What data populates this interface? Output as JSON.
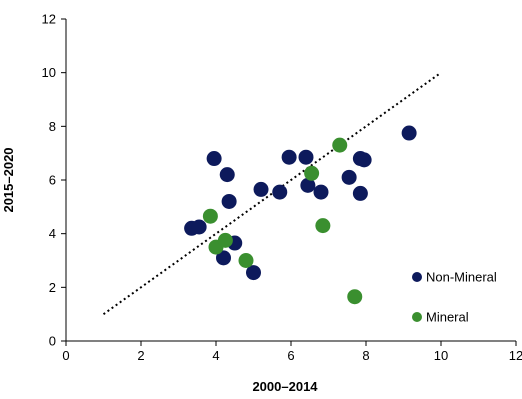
{
  "chart_data": {
    "type": "scatter",
    "xlabel": "2000–2014",
    "ylabel": "2015–2020",
    "xlim": [
      0,
      12
    ],
    "ylim": [
      0,
      12
    ],
    "xticks": [
      0,
      2,
      4,
      6,
      8,
      10,
      12
    ],
    "yticks": [
      0,
      2,
      4,
      6,
      8,
      10,
      12
    ],
    "grid": false,
    "legend_position": "bottom-right",
    "series": [
      {
        "name": "Non-Mineral",
        "color": "#0d1a5c",
        "points": [
          {
            "x": 3.35,
            "y": 4.2
          },
          {
            "x": 3.55,
            "y": 4.25
          },
          {
            "x": 3.95,
            "y": 6.8
          },
          {
            "x": 4.3,
            "y": 6.2
          },
          {
            "x": 4.35,
            "y": 5.2
          },
          {
            "x": 4.2,
            "y": 3.1
          },
          {
            "x": 4.5,
            "y": 3.65
          },
          {
            "x": 5.0,
            "y": 2.55
          },
          {
            "x": 5.2,
            "y": 5.65
          },
          {
            "x": 5.7,
            "y": 5.55
          },
          {
            "x": 5.95,
            "y": 6.85
          },
          {
            "x": 6.4,
            "y": 6.85
          },
          {
            "x": 6.45,
            "y": 5.8
          },
          {
            "x": 6.8,
            "y": 5.55
          },
          {
            "x": 7.55,
            "y": 6.1
          },
          {
            "x": 7.85,
            "y": 6.8
          },
          {
            "x": 7.95,
            "y": 6.75
          },
          {
            "x": 7.85,
            "y": 5.5
          },
          {
            "x": 9.15,
            "y": 7.75
          }
        ]
      },
      {
        "name": "Mineral",
        "color": "#3a8f2f",
        "points": [
          {
            "x": 3.85,
            "y": 4.65
          },
          {
            "x": 4.0,
            "y": 3.5
          },
          {
            "x": 4.25,
            "y": 3.75
          },
          {
            "x": 4.8,
            "y": 3.0
          },
          {
            "x": 6.55,
            "y": 6.25
          },
          {
            "x": 6.85,
            "y": 4.3
          },
          {
            "x": 7.3,
            "y": 7.3
          },
          {
            "x": 7.7,
            "y": 1.65
          }
        ]
      }
    ],
    "reference_line": {
      "style": "dotted",
      "x": [
        1,
        10
      ],
      "y": [
        1,
        10
      ]
    }
  }
}
